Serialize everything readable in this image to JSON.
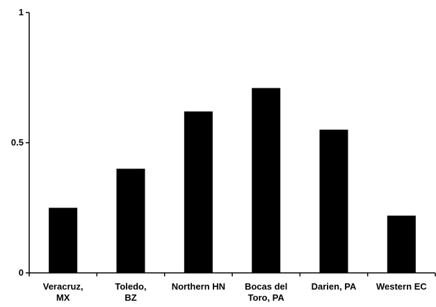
{
  "chart_data": {
    "type": "bar",
    "title": "",
    "xlabel": "",
    "ylabel": "",
    "categories": [
      [
        "Veracruz,",
        "MX"
      ],
      [
        "Toledo,",
        "BZ"
      ],
      [
        "Northern HN"
      ],
      [
        "Bocas del",
        "Toro, PA"
      ],
      [
        "Darien, PA"
      ],
      [
        "Western EC"
      ]
    ],
    "values": [
      0.25,
      0.4,
      0.62,
      0.71,
      0.55,
      0.22
    ],
    "ylim": [
      0,
      1
    ],
    "yticks": [
      {
        "value": 0,
        "label": "0"
      },
      {
        "value": 0.5,
        "label": "0.5"
      },
      {
        "value": 1,
        "label": "1"
      }
    ],
    "bar_color": "#000000",
    "axis_color": "#000000",
    "grid": false,
    "legend": "none"
  }
}
